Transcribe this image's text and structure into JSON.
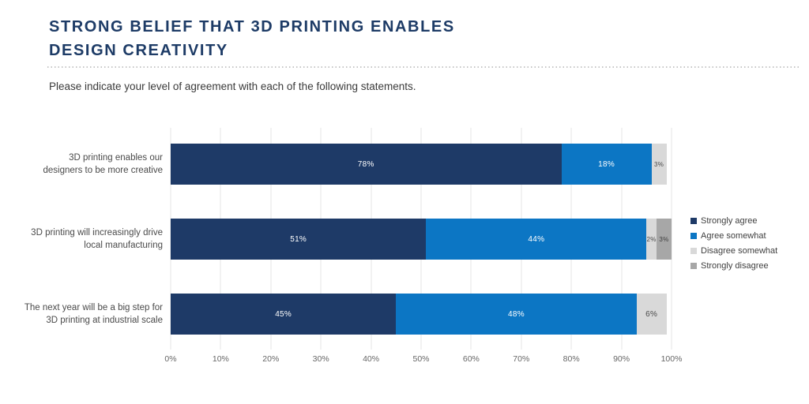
{
  "header": {
    "title_line1": "STRONG BELIEF THAT 3D PRINTING ENABLES",
    "title_line2": "DESIGN CREATIVITY",
    "subtitle": "Please indicate your level of agreement with each of the following statements."
  },
  "chart_data": {
    "type": "bar",
    "variant": "horizontal-stacked",
    "title": "STRONG BELIEF THAT 3D PRINTING ENABLES DESIGN CREATIVITY",
    "subtitle": "Please indicate your level of agreement with each of the following statements.",
    "categories": [
      "3D printing enables our designers to be more creative",
      "3D printing will increasingly drive local manufacturing",
      "The next year will be a big step for 3D printing at industrial scale"
    ],
    "category_lines": [
      [
        "3D printing enables our",
        "designers to be more creative"
      ],
      [
        "3D printing will increasingly drive",
        "local manufacturing"
      ],
      [
        "The next year will be a big step for",
        "3D printing at industrial scale"
      ]
    ],
    "series": [
      {
        "name": "Strongly agree",
        "color": "#1e3a67",
        "label_color": "#ffffff",
        "values": [
          78,
          51,
          45
        ]
      },
      {
        "name": "Agree somewhat",
        "color": "#0c76c4",
        "label_color": "#ffffff",
        "values": [
          18,
          44,
          48
        ]
      },
      {
        "name": "Disagree somewhat",
        "color": "#d9d9d9",
        "label_color": "#4a4a4a",
        "values": [
          3,
          2,
          6
        ]
      },
      {
        "name": "Strongly disagree",
        "color": "#a7a7a7",
        "label_color": "#3d3d3d",
        "values": [
          0,
          3,
          0
        ]
      }
    ],
    "value_suffix": "%",
    "xlim": [
      0,
      100
    ],
    "xticks": [
      "0%",
      "10%",
      "20%",
      "30%",
      "40%",
      "50%",
      "60%",
      "70%",
      "80%",
      "90%",
      "100%"
    ],
    "grid": true,
    "legend_position": "right",
    "colors": {
      "title": "#1d3b66",
      "gridline": "#e4e4e4",
      "axis_text": "#666666",
      "category_text": "#4a4a4a"
    }
  }
}
